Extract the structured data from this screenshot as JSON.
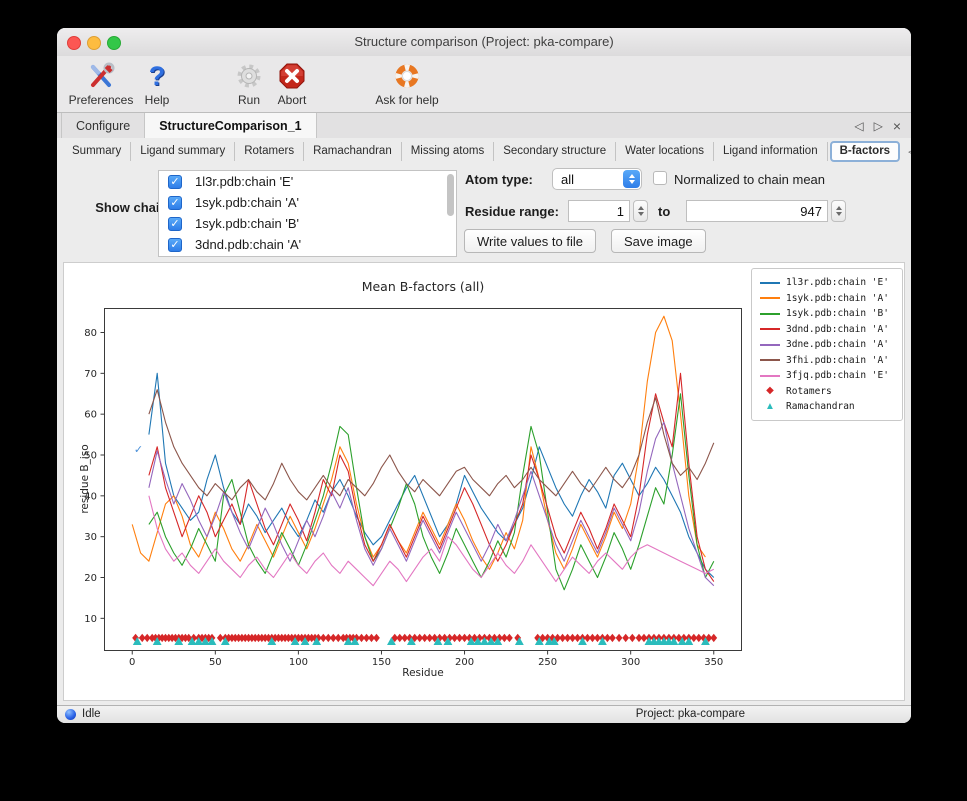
{
  "window": {
    "title": "Structure comparison (Project: pka-compare)"
  },
  "toolbar": {
    "items": [
      {
        "label": "Preferences"
      },
      {
        "label": "Help"
      },
      {
        "label": "Run"
      },
      {
        "label": "Abort"
      },
      {
        "label": "Ask for help"
      }
    ]
  },
  "tabs": {
    "main": [
      {
        "label": "Configure"
      },
      {
        "label": "StructureComparison_1"
      }
    ],
    "nav": {
      "left": "◁",
      "right": "▷",
      "close": "×"
    }
  },
  "subtabs": {
    "items": [
      {
        "label": "Summary"
      },
      {
        "label": "Ligand summary"
      },
      {
        "label": "Rotamers"
      },
      {
        "label": "Ramachandran"
      },
      {
        "label": "Missing atoms"
      },
      {
        "label": "Secondary structure"
      },
      {
        "label": "Water locations"
      },
      {
        "label": "Ligand information"
      },
      {
        "label": "B-factors"
      }
    ],
    "selected": "B-factors",
    "nav": {
      "left": "◁",
      "right": "▷"
    }
  },
  "controls": {
    "show_chains_label": "Show chains:",
    "chains": [
      {
        "label": "1l3r.pdb:chain 'E'",
        "checked": true
      },
      {
        "label": "1syk.pdb:chain 'A'",
        "checked": true
      },
      {
        "label": "1syk.pdb:chain 'B'",
        "checked": true
      },
      {
        "label": "3dnd.pdb:chain 'A'",
        "checked": true
      }
    ],
    "atom_type_label": "Atom type:",
    "atom_type_value": "all",
    "normalized_label": "Normalized to chain mean",
    "normalized_checked": false,
    "residue_range_label": "Residue range:",
    "range_from": "1",
    "to_label": "to",
    "range_to": "947",
    "write_button": "Write values to file",
    "save_button": "Save image"
  },
  "chart_data": {
    "type": "line",
    "title": "Mean B-factors (all)",
    "xlabel": "Residue",
    "ylabel": "residue B_iso",
    "xlim": [
      -17,
      367
    ],
    "ylim": [
      2,
      86
    ],
    "xticks": [
      0,
      50,
      100,
      150,
      200,
      250,
      300,
      350
    ],
    "yticks": [
      10,
      20,
      30,
      40,
      50,
      60,
      70,
      80
    ],
    "grid": false,
    "legend_position": "outside upper right",
    "annotation": {
      "text": "✓",
      "x": 1,
      "y": 50.5,
      "color": "#4a90d9"
    },
    "series": [
      {
        "name": "1l3r.pdb:chain 'E'",
        "color": "#1f77b4",
        "x_start": 10,
        "x_step": 5,
        "values": [
          55,
          70,
          48,
          40,
          37,
          34,
          36,
          44,
          50,
          42,
          36,
          33,
          38,
          35,
          31,
          34,
          37,
          33,
          30,
          34,
          39,
          36,
          41,
          44,
          40,
          35,
          31,
          28,
          30,
          34,
          38,
          42,
          45,
          40,
          35,
          30,
          33,
          38,
          45,
          41,
          37,
          34,
          31,
          29,
          33,
          37,
          44,
          52,
          47,
          42,
          38,
          35,
          40,
          44,
          41,
          37,
          45,
          48,
          44,
          40,
          43,
          47,
          44,
          40,
          36,
          30,
          26,
          22,
          20
        ]
      },
      {
        "name": "1syk.pdb:chain 'A'",
        "color": "#ff7f0e",
        "x_start": 0,
        "x_step": 5,
        "values": [
          33,
          26,
          24,
          31,
          38,
          40,
          35,
          28,
          25,
          30,
          36,
          32,
          27,
          24,
          28,
          33,
          29,
          25,
          30,
          35,
          31,
          27,
          32,
          38,
          44,
          52,
          48,
          38,
          30,
          25,
          28,
          33,
          29,
          26,
          31,
          36,
          32,
          28,
          33,
          38,
          34,
          29,
          25,
          22,
          26,
          31,
          27,
          34,
          52,
          44,
          34,
          26,
          22,
          27,
          33,
          29,
          25,
          30,
          36,
          32,
          38,
          50,
          68,
          80,
          84,
          78,
          60,
          40,
          28,
          25
        ]
      },
      {
        "name": "1syk.pdb:chain 'B'",
        "color": "#2ca02c",
        "x_start": 10,
        "x_step": 5,
        "values": [
          33,
          36,
          30,
          26,
          23,
          27,
          32,
          28,
          24,
          40,
          44,
          36,
          28,
          24,
          21,
          26,
          31,
          27,
          23,
          28,
          34,
          40,
          48,
          57,
          55,
          42,
          30,
          24,
          27,
          32,
          37,
          43,
          38,
          30,
          25,
          21,
          26,
          32,
          28,
          24,
          20,
          24,
          29,
          25,
          31,
          45,
          57,
          50,
          36,
          22,
          17,
          22,
          28,
          24,
          20,
          25,
          31,
          27,
          22,
          28,
          35,
          42,
          38,
          50,
          65,
          45,
          28,
          20,
          24
        ]
      },
      {
        "name": "3dnd.pdb:chain 'A'",
        "color": "#d62728",
        "x_start": 10,
        "x_step": 5,
        "values": [
          45,
          52,
          42,
          36,
          30,
          35,
          40,
          36,
          30,
          34,
          38,
          33,
          44,
          38,
          32,
          28,
          33,
          38,
          34,
          29,
          36,
          44,
          40,
          50,
          46,
          36,
          28,
          24,
          28,
          33,
          29,
          25,
          30,
          35,
          31,
          27,
          32,
          37,
          42,
          38,
          33,
          28,
          24,
          28,
          33,
          38,
          50,
          44,
          37,
          30,
          26,
          31,
          36,
          32,
          27,
          32,
          38,
          34,
          30,
          40,
          55,
          65,
          58,
          52,
          70,
          48,
          30,
          22,
          19
        ]
      },
      {
        "name": "3dne.pdb:chain 'A'",
        "color": "#9467bd",
        "x_start": 10,
        "x_step": 5,
        "values": [
          42,
          51,
          44,
          38,
          43,
          39,
          34,
          30,
          35,
          41,
          36,
          31,
          27,
          32,
          37,
          33,
          28,
          24,
          29,
          34,
          30,
          35,
          41,
          37,
          42,
          34,
          27,
          23,
          27,
          32,
          28,
          24,
          29,
          34,
          30,
          26,
          31,
          36,
          32,
          28,
          24,
          28,
          33,
          29,
          34,
          40,
          46,
          40,
          34,
          28,
          24,
          29,
          34,
          30,
          26,
          31,
          37,
          33,
          29,
          36,
          46,
          54,
          58,
          48,
          40,
          32,
          26,
          20,
          18
        ]
      },
      {
        "name": "3fhi.pdb:chain 'A'",
        "color": "#8c564b",
        "x_start": 10,
        "x_step": 5,
        "values": [
          60,
          66,
          58,
          52,
          48,
          45,
          42,
          40,
          43,
          41,
          39,
          42,
          44,
          41,
          39,
          43,
          48,
          44,
          41,
          39,
          42,
          45,
          42,
          40,
          44,
          42,
          40,
          43,
          47,
          50,
          46,
          43,
          41,
          44,
          42,
          40,
          43,
          46,
          47,
          44,
          42,
          40,
          43,
          45,
          42,
          44,
          47,
          44,
          42,
          40,
          43,
          46,
          43,
          41,
          44,
          47,
          44,
          42,
          45,
          50,
          58,
          64,
          55,
          48,
          45,
          47,
          44,
          48,
          53
        ]
      },
      {
        "name": "3fjq.pdb:chain 'E'",
        "color": "#e377c2",
        "x_start": 10,
        "x_step": 5,
        "values": [
          40,
          32,
          27,
          24,
          26,
          23,
          21,
          24,
          27,
          24,
          22,
          20,
          23,
          25,
          22,
          20,
          23,
          26,
          23,
          21,
          24,
          26,
          23,
          21,
          24,
          22,
          20,
          18,
          21,
          24,
          22,
          19,
          22,
          25,
          27,
          24,
          30,
          28,
          25,
          22,
          20,
          23,
          26,
          23,
          21,
          24,
          28,
          25,
          22,
          19,
          22,
          25,
          23,
          21,
          24,
          26,
          24,
          22,
          25,
          27,
          28,
          27,
          26,
          25,
          24,
          23,
          22,
          21,
          22
        ]
      }
    ],
    "markers": [
      {
        "name": "Rotamers",
        "color": "#d62728",
        "shape": "diamond",
        "y": 5.2,
        "x": [
          2,
          6,
          9,
          12,
          14,
          16,
          18,
          20,
          22,
          24,
          26,
          28,
          30,
          32,
          34,
          37,
          40,
          42,
          44,
          46,
          48,
          53,
          56,
          58,
          60,
          62,
          64,
          66,
          68,
          70,
          72,
          74,
          76,
          78,
          80,
          82,
          84,
          86,
          88,
          90,
          92,
          94,
          96,
          98,
          100,
          102,
          104,
          106,
          108,
          110,
          112,
          115,
          118,
          121,
          124,
          127,
          129,
          131,
          133,
          135,
          138,
          141,
          144,
          147,
          158,
          161,
          164,
          167,
          170,
          173,
          176,
          179,
          182,
          185,
          188,
          191,
          194,
          197,
          200,
          203,
          206,
          209,
          212,
          215,
          218,
          221,
          224,
          227,
          232,
          244,
          247,
          250,
          253,
          256,
          259,
          262,
          265,
          268,
          271,
          274,
          277,
          280,
          283,
          286,
          289,
          293,
          297,
          301,
          305,
          308,
          311,
          314,
          317,
          320,
          323,
          326,
          329,
          332,
          335,
          338,
          341,
          344,
          347,
          350
        ]
      },
      {
        "name": "Ramachandran",
        "color": "#2bbcbc",
        "shape": "triangle",
        "y": 4.4,
        "x": [
          3,
          15,
          28,
          36,
          40,
          44,
          48,
          56,
          84,
          98,
          104,
          111,
          130,
          134,
          156,
          168,
          184,
          190,
          204,
          208,
          212,
          216,
          220,
          233,
          245,
          251,
          254,
          271,
          283,
          311,
          314,
          317,
          320,
          323,
          326,
          331,
          335,
          345
        ]
      }
    ]
  },
  "statusbar": {
    "status": "Idle",
    "project": "Project: pka-compare"
  }
}
